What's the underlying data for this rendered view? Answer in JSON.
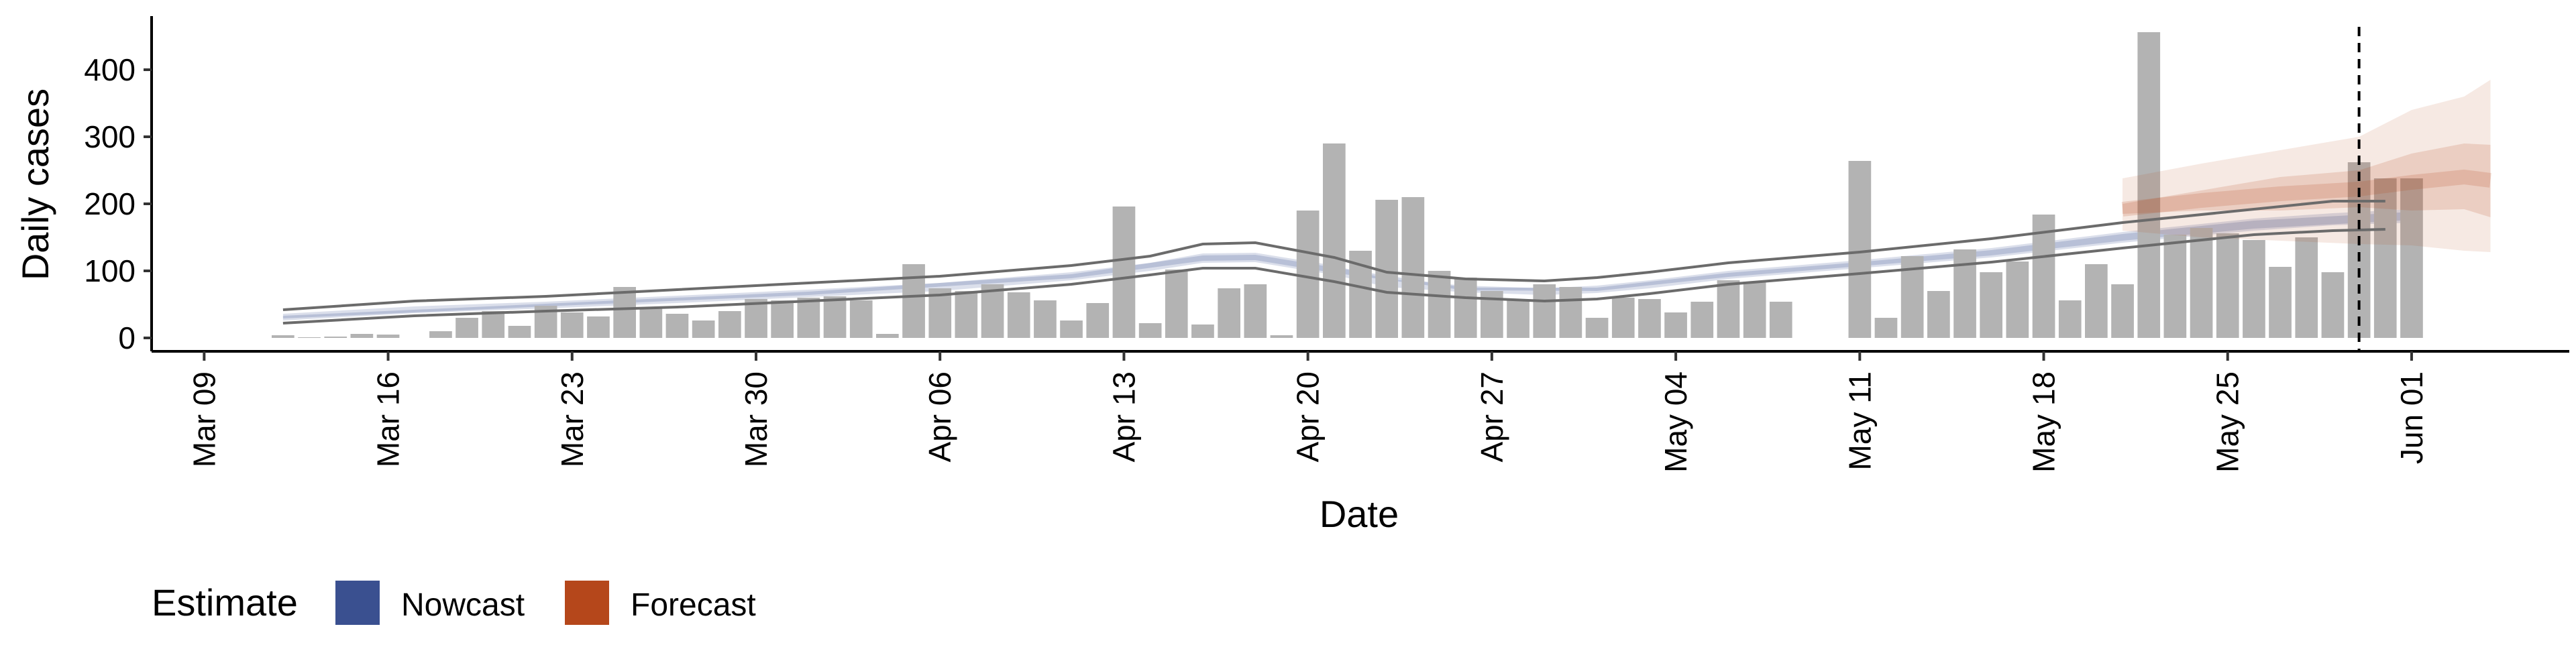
{
  "chart_data": {
    "type": "bar",
    "xlabel": "Date",
    "ylabel": "Daily cases",
    "ylim": [
      -20,
      480
    ],
    "y_ticks": [
      0,
      100,
      200,
      300,
      400
    ],
    "x_ticks": [
      "Mar 09",
      "Mar 16",
      "Mar 23",
      "Mar 30",
      "Apr 06",
      "Apr 13",
      "Apr 20",
      "Apr 27",
      "May 04",
      "May 11",
      "May 18",
      "May 25",
      "Jun 01"
    ],
    "x_tick_rotation": -90,
    "date_range": [
      "2020-03-07",
      "2020-06-07"
    ],
    "grid": false,
    "bars": {
      "start_date": "2020-03-12",
      "color": "#b3b3b3",
      "values": [
        4,
        1,
        2,
        6,
        5,
        0,
        10,
        30,
        40,
        18,
        48,
        38,
        32,
        76,
        46,
        36,
        26,
        40,
        58,
        56,
        60,
        62,
        56,
        6,
        110,
        74,
        70,
        80,
        68,
        56,
        26,
        52,
        196,
        22,
        102,
        20,
        74,
        80,
        4,
        190,
        290,
        130,
        206,
        210,
        100,
        90,
        70,
        58,
        80,
        76,
        30,
        60,
        58,
        38,
        54,
        86,
        84,
        54,
        0,
        0,
        264,
        30,
        122,
        70,
        132,
        98,
        114,
        184,
        56,
        110,
        80,
        456,
        154,
        164,
        156,
        146,
        106,
        150,
        98,
        262,
        238,
        238
      ]
    },
    "estimate_line": {
      "start_date": "2020-03-12",
      "end_date": "2020-05-20",
      "color": "#6b6b6b",
      "upper": [
        [
          0,
          42
        ],
        [
          5,
          55
        ],
        [
          10,
          62
        ],
        [
          15,
          72
        ],
        [
          20,
          82
        ],
        [
          25,
          92
        ],
        [
          30,
          108
        ],
        [
          33,
          122
        ],
        [
          35,
          140
        ],
        [
          37,
          142
        ],
        [
          40,
          120
        ],
        [
          42,
          98
        ],
        [
          45,
          88
        ],
        [
          48,
          85
        ],
        [
          50,
          90
        ],
        [
          52,
          98
        ],
        [
          55,
          112
        ],
        [
          60,
          128
        ],
        [
          65,
          148
        ],
        [
          70,
          172
        ],
        [
          75,
          192
        ],
        [
          78,
          204
        ],
        [
          80,
          204
        ]
      ],
      "lower": [
        [
          0,
          22
        ],
        [
          5,
          33
        ],
        [
          10,
          40
        ],
        [
          15,
          46
        ],
        [
          20,
          55
        ],
        [
          25,
          64
        ],
        [
          30,
          80
        ],
        [
          33,
          94
        ],
        [
          35,
          104
        ],
        [
          37,
          104
        ],
        [
          40,
          84
        ],
        [
          42,
          68
        ],
        [
          45,
          60
        ],
        [
          48,
          55
        ],
        [
          50,
          58
        ],
        [
          52,
          66
        ],
        [
          55,
          80
        ],
        [
          60,
          96
        ],
        [
          65,
          113
        ],
        [
          70,
          134
        ],
        [
          75,
          154
        ],
        [
          78,
          160
        ],
        [
          80,
          162
        ]
      ]
    },
    "nowcast_band": {
      "start_date": "2020-03-12",
      "end_date": "2020-05-21",
      "color": "#3a5090",
      "upper": [
        [
          0,
          36
        ],
        [
          5,
          47
        ],
        [
          10,
          54
        ],
        [
          15,
          63
        ],
        [
          20,
          72
        ],
        [
          25,
          82
        ],
        [
          30,
          98
        ],
        [
          33,
          112
        ],
        [
          35,
          126
        ],
        [
          37,
          127
        ],
        [
          40,
          108
        ],
        [
          42,
          88
        ],
        [
          45,
          78
        ],
        [
          48,
          74
        ],
        [
          50,
          78
        ],
        [
          52,
          86
        ],
        [
          55,
          100
        ],
        [
          60,
          116
        ],
        [
          65,
          134
        ],
        [
          70,
          158
        ],
        [
          75,
          178
        ],
        [
          78,
          186
        ],
        [
          81,
          192
        ]
      ],
      "lower": [
        [
          0,
          26
        ],
        [
          5,
          37
        ],
        [
          10,
          44
        ],
        [
          15,
          52
        ],
        [
          20,
          61
        ],
        [
          25,
          70
        ],
        [
          30,
          86
        ],
        [
          33,
          100
        ],
        [
          35,
          112
        ],
        [
          37,
          113
        ],
        [
          40,
          94
        ],
        [
          42,
          76
        ],
        [
          45,
          68
        ],
        [
          48,
          64
        ],
        [
          50,
          67
        ],
        [
          52,
          74
        ],
        [
          55,
          88
        ],
        [
          60,
          104
        ],
        [
          65,
          120
        ],
        [
          70,
          142
        ],
        [
          75,
          160
        ],
        [
          78,
          168
        ],
        [
          81,
          172
        ]
      ],
      "inner_upper": [
        [
          0,
          33
        ],
        [
          10,
          51
        ],
        [
          20,
          69
        ],
        [
          30,
          95
        ],
        [
          35,
          123
        ],
        [
          37,
          124
        ],
        [
          40,
          105
        ],
        [
          45,
          75
        ],
        [
          50,
          75
        ],
        [
          55,
          97
        ],
        [
          60,
          113
        ],
        [
          65,
          131
        ],
        [
          70,
          155
        ],
        [
          75,
          175
        ],
        [
          81,
          188
        ]
      ],
      "inner_lower": [
        [
          0,
          29
        ],
        [
          10,
          47
        ],
        [
          20,
          64
        ],
        [
          30,
          89
        ],
        [
          35,
          115
        ],
        [
          37,
          116
        ],
        [
          40,
          97
        ],
        [
          45,
          71
        ],
        [
          50,
          70
        ],
        [
          55,
          91
        ],
        [
          60,
          107
        ],
        [
          65,
          123
        ],
        [
          70,
          145
        ],
        [
          75,
          163
        ],
        [
          81,
          176
        ]
      ]
    },
    "forecast_band": {
      "start_date": "2020-05-21",
      "end_date": "2020-06-04",
      "color": "#b5471b",
      "outer_upper": [
        [
          0,
          238
        ],
        [
          3,
          260
        ],
        [
          6,
          280
        ],
        [
          9,
          300
        ],
        [
          11,
          340
        ],
        [
          13,
          360
        ],
        [
          14,
          385
        ]
      ],
      "outer_lower": [
        [
          0,
          160
        ],
        [
          3,
          150
        ],
        [
          6,
          145
        ],
        [
          9,
          140
        ],
        [
          11,
          138
        ],
        [
          13,
          130
        ],
        [
          14,
          128
        ]
      ],
      "inner_upper": [
        [
          0,
          200
        ],
        [
          3,
          220
        ],
        [
          6,
          240
        ],
        [
          9,
          250
        ],
        [
          11,
          275
        ],
        [
          13,
          290
        ],
        [
          14,
          288
        ]
      ],
      "inner_lower": [
        [
          0,
          185
        ],
        [
          3,
          190
        ],
        [
          6,
          190
        ],
        [
          9,
          195
        ],
        [
          11,
          190
        ],
        [
          13,
          192
        ],
        [
          14,
          180
        ]
      ],
      "median": [
        [
          0,
          192
        ],
        [
          3,
          205
        ],
        [
          6,
          215
        ],
        [
          9,
          222
        ],
        [
          11,
          232
        ],
        [
          13,
          240
        ],
        [
          14,
          235
        ]
      ]
    },
    "vline_date": "2020-05-30",
    "legend": {
      "position": "bottom-left",
      "title": "Estimate",
      "entries": [
        {
          "label": "Nowcast",
          "color": "#3a5090"
        },
        {
          "label": "Forecast",
          "color": "#b5471b"
        }
      ]
    }
  }
}
